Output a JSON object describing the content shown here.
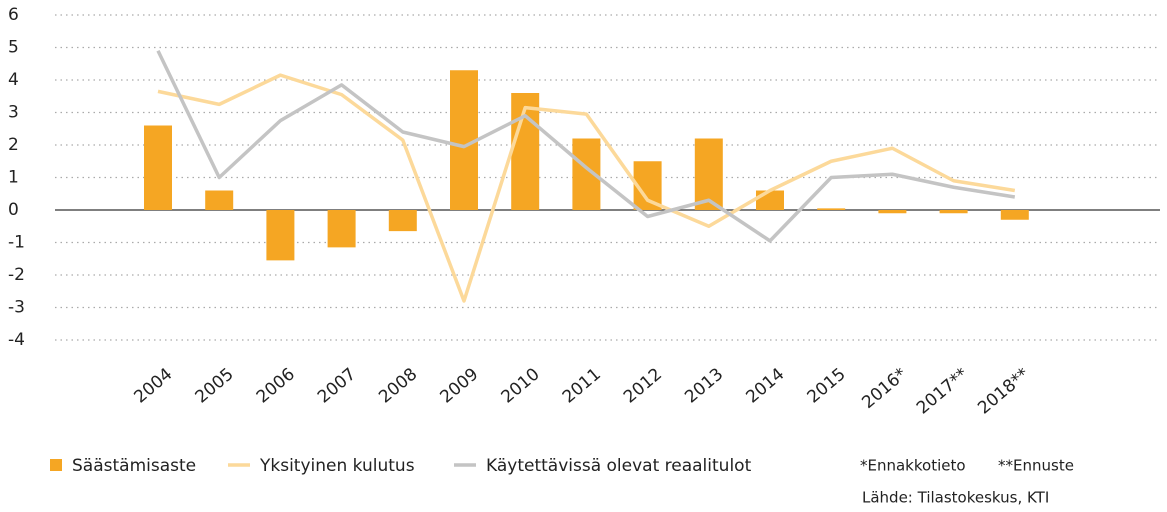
{
  "chart_data": {
    "type": "bar-line",
    "categories": [
      "2004",
      "2005",
      "2006",
      "2007",
      "2008",
      "2009",
      "2010",
      "2011",
      "2012",
      "2013",
      "2014",
      "2015",
      "2016*",
      "2017**",
      "2018**"
    ],
    "series": [
      {
        "name": "Säästämisaste",
        "type": "bar",
        "color": "#f5a623",
        "values": [
          2.6,
          0.6,
          -1.55,
          -1.15,
          -0.65,
          4.3,
          3.6,
          2.2,
          1.5,
          2.2,
          0.6,
          0.05,
          -0.1,
          -0.1,
          -0.3
        ]
      },
      {
        "name": "Yksityinen kulutus",
        "type": "line",
        "color": "#fcd99a",
        "values": [
          3.65,
          3.25,
          4.15,
          3.55,
          2.15,
          -2.8,
          3.15,
          2.95,
          0.3,
          -0.5,
          0.6,
          1.5,
          1.9,
          0.9,
          0.6
        ]
      },
      {
        "name": "Käytettävissä olevat reaalitulot",
        "type": "line",
        "color": "#c4c4c4",
        "values": [
          4.9,
          1.0,
          2.75,
          3.85,
          2.4,
          1.95,
          2.9,
          1.3,
          -0.2,
          0.3,
          -0.95,
          1.0,
          1.1,
          0.7,
          0.4
        ]
      }
    ],
    "ylim": [
      -4,
      6
    ],
    "yticks": [
      6,
      5,
      4,
      3,
      2,
      1,
      0,
      -1,
      -2,
      -3,
      -4
    ],
    "grid": true,
    "notes": [
      "*Ennakkotieto",
      "**Ennuste",
      "Lähde: Tilastokeskus, KTI"
    ]
  }
}
